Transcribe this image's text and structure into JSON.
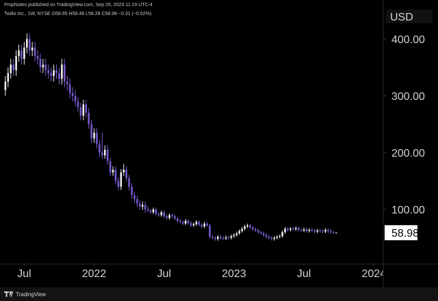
{
  "chart_data": {
    "type": "candlestick",
    "publisher": "PropNotes published on TradingView.com, Sep 25, 2023 11:19 UTC-4",
    "title": "Twilio Inc., 1W, NYSE",
    "header_values": "O58.65 H59.48 L58.28 C58.98 −0.31 (−0.52%)",
    "currency": "USD",
    "footer": "TradingView",
    "up_color": "#f0f0f5",
    "down_color": "#7a5cd0",
    "grid": false,
    "ylim": [
      5,
      447
    ],
    "yticks": [
      {
        "value": 100,
        "label": "100.00"
      },
      {
        "value": 200,
        "label": "200.00"
      },
      {
        "value": 300,
        "label": "300.00"
      },
      {
        "value": 400,
        "label": "400.00"
      }
    ],
    "xlim": [
      -2,
      140.5
    ],
    "xticks": [
      {
        "value": 7,
        "label": "Jul"
      },
      {
        "value": 33,
        "label": "2022"
      },
      {
        "value": 59,
        "label": "Jul"
      },
      {
        "value": 85,
        "label": "2023"
      },
      {
        "value": 111,
        "label": "Jul"
      },
      {
        "value": 137,
        "label": "2024"
      }
    ],
    "open": [
      310,
      325,
      340,
      355,
      345,
      370,
      380,
      365,
      385,
      400,
      380,
      385,
      370,
      365,
      350,
      355,
      345,
      340,
      335,
      345,
      340,
      330,
      355,
      325,
      320,
      305,
      300,
      290,
      280,
      265,
      285,
      270,
      250,
      225,
      235,
      215,
      200,
      195,
      205,
      185,
      165,
      170,
      150,
      140,
      165,
      170,
      155,
      140,
      125,
      118,
      110,
      105,
      108,
      100,
      98,
      95,
      100,
      92,
      90,
      95,
      88,
      85,
      90,
      88,
      84,
      80,
      78,
      75,
      80,
      76,
      72,
      74,
      78,
      73,
      70,
      75,
      72,
      52,
      50,
      48,
      52,
      50,
      49,
      51,
      50,
      53,
      55,
      58,
      62,
      66,
      70,
      72,
      68,
      65,
      63,
      60,
      58,
      55,
      52,
      50,
      48,
      50,
      52,
      53,
      60,
      66,
      64,
      66,
      65,
      67,
      64,
      63,
      65,
      62,
      64,
      63,
      61,
      63,
      62,
      61,
      64,
      62,
      60,
      58.65
    ],
    "high": [
      335,
      350,
      365,
      365,
      380,
      390,
      390,
      395,
      410,
      410,
      395,
      395,
      380,
      375,
      365,
      365,
      355,
      350,
      355,
      355,
      350,
      365,
      365,
      335,
      330,
      315,
      310,
      298,
      288,
      293,
      293,
      278,
      258,
      243,
      243,
      223,
      235,
      213,
      213,
      191,
      176,
      176,
      156,
      171,
      180,
      176,
      161,
      146,
      131,
      124,
      116,
      114,
      114,
      106,
      101,
      103,
      103,
      95,
      98,
      98,
      91,
      93,
      93,
      91,
      87,
      83,
      81,
      83,
      83,
      79,
      77,
      81,
      81,
      76,
      78,
      78,
      75,
      55,
      53,
      55,
      55,
      53,
      54,
      54,
      56,
      58,
      61,
      65,
      69,
      73,
      75,
      75,
      71,
      68,
      66,
      63,
      61,
      58,
      55,
      53,
      53,
      55,
      56,
      63,
      69,
      69,
      69,
      69,
      70,
      70,
      67,
      68,
      68,
      67,
      67,
      66,
      66,
      66,
      65,
      67,
      67,
      65,
      62,
      59.48
    ],
    "low": [
      300,
      315,
      330,
      335,
      335,
      360,
      355,
      355,
      375,
      370,
      370,
      360,
      355,
      340,
      340,
      335,
      330,
      325,
      325,
      330,
      320,
      320,
      315,
      310,
      295,
      290,
      282,
      272,
      257,
      257,
      262,
      242,
      217,
      217,
      207,
      192,
      189,
      189,
      179,
      159,
      159,
      144,
      134,
      134,
      159,
      149,
      134,
      119,
      112,
      104,
      99,
      99,
      94,
      95,
      92,
      92,
      89,
      87,
      87,
      85,
      82,
      82,
      85,
      81,
      77,
      75,
      72,
      72,
      73,
      69,
      69,
      71,
      70,
      67,
      67,
      69,
      49,
      47,
      45,
      45,
      47,
      46,
      46,
      47,
      47,
      50,
      52,
      55,
      59,
      63,
      67,
      65,
      62,
      60,
      57,
      55,
      52,
      49,
      47,
      45,
      45,
      47,
      49,
      50,
      57,
      61,
      61,
      62,
      62,
      61,
      60,
      60,
      59,
      59,
      60,
      58,
      58,
      59,
      58,
      58,
      59,
      57,
      57,
      58.28
    ],
    "close": [
      325,
      340,
      355,
      345,
      370,
      380,
      365,
      385,
      400,
      380,
      385,
      370,
      365,
      350,
      355,
      345,
      340,
      335,
      345,
      340,
      330,
      355,
      325,
      320,
      305,
      300,
      290,
      280,
      265,
      285,
      270,
      250,
      225,
      235,
      215,
      200,
      195,
      205,
      185,
      165,
      170,
      150,
      140,
      165,
      170,
      155,
      140,
      125,
      118,
      110,
      105,
      108,
      100,
      98,
      95,
      100,
      92,
      90,
      95,
      88,
      85,
      90,
      88,
      84,
      80,
      78,
      75,
      80,
      76,
      72,
      74,
      78,
      73,
      70,
      75,
      72,
      52,
      50,
      48,
      52,
      50,
      49,
      51,
      50,
      53,
      55,
      58,
      62,
      66,
      70,
      72,
      68,
      65,
      63,
      60,
      58,
      55,
      52,
      50,
      48,
      50,
      52,
      53,
      60,
      66,
      64,
      66,
      65,
      67,
      64,
      63,
      65,
      62,
      64,
      63,
      61,
      63,
      62,
      61,
      64,
      62,
      60,
      59.29,
      58.98
    ]
  }
}
